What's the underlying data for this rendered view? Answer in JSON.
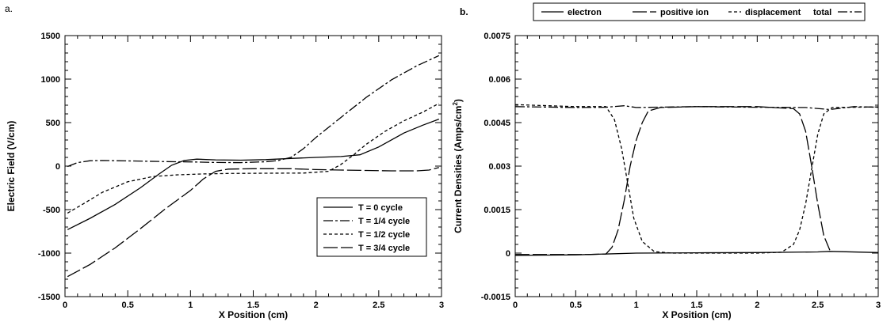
{
  "chart_data": [
    {
      "panel_label": "a.",
      "type": "line",
      "xlabel": "X Position (cm)",
      "ylabel": "Electric Field (V/cm)",
      "xlim": [
        0,
        3
      ],
      "ylim": [
        -1500,
        1500
      ],
      "xticks": [
        "0",
        "0.5",
        "1",
        "1.5",
        "2",
        "2.5",
        "3"
      ],
      "yticks": [
        "-1500",
        "-1000",
        "-500",
        "0",
        "500",
        "1000",
        "1500"
      ],
      "grid": false,
      "legend_position": "lower-right",
      "series": [
        {
          "name": "T = 0 cycle",
          "style": "solid",
          "points": [
            [
              0.02,
              -730
            ],
            [
              0.2,
              -600
            ],
            [
              0.4,
              -440
            ],
            [
              0.6,
              -250
            ],
            [
              0.75,
              -90
            ],
            [
              0.85,
              10
            ],
            [
              0.95,
              65
            ],
            [
              1.05,
              80
            ],
            [
              1.2,
              72
            ],
            [
              1.4,
              68
            ],
            [
              1.6,
              75
            ],
            [
              1.8,
              88
            ],
            [
              2.0,
              100
            ],
            [
              2.2,
              110
            ],
            [
              2.35,
              130
            ],
            [
              2.5,
              220
            ],
            [
              2.7,
              380
            ],
            [
              2.85,
              470
            ],
            [
              2.98,
              540
            ]
          ]
        },
        {
          "name": "T = 1/4 cycle",
          "style": "dash-dot",
          "points": [
            [
              0.02,
              -5
            ],
            [
              0.1,
              40
            ],
            [
              0.2,
              62
            ],
            [
              0.3,
              65
            ],
            [
              0.5,
              60
            ],
            [
              0.8,
              52
            ],
            [
              1.0,
              48
            ],
            [
              1.2,
              42
            ],
            [
              1.4,
              40
            ],
            [
              1.6,
              50
            ],
            [
              1.7,
              65
            ],
            [
              1.8,
              100
            ],
            [
              1.9,
              200
            ],
            [
              2.0,
              330
            ],
            [
              2.2,
              560
            ],
            [
              2.4,
              790
            ],
            [
              2.6,
              990
            ],
            [
              2.8,
              1150
            ],
            [
              2.98,
              1270
            ]
          ]
        },
        {
          "name": "T = 1/2 cycle",
          "style": "dotted",
          "points": [
            [
              0.02,
              -540
            ],
            [
              0.15,
              -430
            ],
            [
              0.3,
              -300
            ],
            [
              0.5,
              -180
            ],
            [
              0.7,
              -120
            ],
            [
              0.9,
              -100
            ],
            [
              1.1,
              -90
            ],
            [
              1.3,
              -85
            ],
            [
              1.6,
              -82
            ],
            [
              1.9,
              -80
            ],
            [
              2.1,
              -60
            ],
            [
              2.2,
              20
            ],
            [
              2.3,
              130
            ],
            [
              2.4,
              250
            ],
            [
              2.55,
              400
            ],
            [
              2.7,
              520
            ],
            [
              2.85,
              620
            ],
            [
              2.98,
              720
            ]
          ]
        },
        {
          "name": "T = 3/4 cycle",
          "style": "long-dash",
          "points": [
            [
              0.02,
              -1270
            ],
            [
              0.2,
              -1130
            ],
            [
              0.4,
              -940
            ],
            [
              0.6,
              -720
            ],
            [
              0.8,
              -490
            ],
            [
              1.0,
              -280
            ],
            [
              1.1,
              -150
            ],
            [
              1.2,
              -60
            ],
            [
              1.3,
              -35
            ],
            [
              1.5,
              -30
            ],
            [
              1.8,
              -30
            ],
            [
              2.0,
              -40
            ],
            [
              2.2,
              -45
            ],
            [
              2.4,
              -50
            ],
            [
              2.6,
              -55
            ],
            [
              2.8,
              -55
            ],
            [
              2.9,
              -45
            ],
            [
              2.98,
              -15
            ]
          ]
        }
      ]
    },
    {
      "panel_label": "b.",
      "type": "line",
      "xlabel": "X Position (cm)",
      "ylabel_main": "Current Densities (Amps/cm",
      "ylabel_sup": "2",
      "ylabel_end": ")",
      "xlim": [
        0,
        3
      ],
      "ylim": [
        -0.0015,
        0.0075
      ],
      "xticks": [
        "0",
        "0.5",
        "1",
        "1.5",
        "2",
        "2.5",
        "3"
      ],
      "yticks": [
        "-0.0015",
        "0",
        "0.0015",
        "0.003",
        "0.0045",
        "0.006",
        "0.0075"
      ],
      "grid": false,
      "legend_position": "top",
      "series": [
        {
          "name": "electron",
          "style": "solid",
          "points": [
            [
              0.0,
              -8e-05
            ],
            [
              0.5,
              -6e-05
            ],
            [
              1.0,
              0.0
            ],
            [
              1.5,
              1e-05
            ],
            [
              2.0,
              2e-05
            ],
            [
              2.5,
              4e-05
            ],
            [
              2.6,
              6e-05
            ],
            [
              3.0,
              2e-05
            ]
          ]
        },
        {
          "name": "positive ion",
          "style": "long-dash",
          "points": [
            [
              0.0,
              -5e-05
            ],
            [
              0.6,
              -5e-05
            ],
            [
              0.75,
              -3e-05
            ],
            [
              0.8,
              0.0002
            ],
            [
              0.85,
              0.0008
            ],
            [
              0.9,
              0.0018
            ],
            [
              0.95,
              0.003
            ],
            [
              1.0,
              0.0039
            ],
            [
              1.05,
              0.0045
            ],
            [
              1.1,
              0.0049
            ],
            [
              1.2,
              0.00502
            ],
            [
              1.5,
              0.00505
            ],
            [
              2.0,
              0.00505
            ],
            [
              2.3,
              0.00498
            ],
            [
              2.35,
              0.0048
            ],
            [
              2.4,
              0.0042
            ],
            [
              2.45,
              0.003
            ],
            [
              2.5,
              0.0017
            ],
            [
              2.55,
              0.0006
            ],
            [
              2.6,
              0.0001
            ]
          ]
        },
        {
          "name": "displacement",
          "style": "dotted",
          "points": [
            [
              0.0,
              0.00512
            ],
            [
              0.5,
              0.00505
            ],
            [
              0.75,
              0.00505
            ],
            [
              0.82,
              0.0046
            ],
            [
              0.88,
              0.0036
            ],
            [
              0.93,
              0.0024
            ],
            [
              0.98,
              0.0012
            ],
            [
              1.05,
              0.0004
            ],
            [
              1.15,
              5e-05
            ],
            [
              1.3,
              0.0
            ],
            [
              2.0,
              0.0
            ],
            [
              2.2,
              3e-05
            ],
            [
              2.3,
              0.0003
            ],
            [
              2.35,
              0.0008
            ],
            [
              2.4,
              0.0017
            ],
            [
              2.45,
              0.0029
            ],
            [
              2.5,
              0.0041
            ],
            [
              2.55,
              0.0048
            ],
            [
              2.62,
              0.00502
            ],
            [
              3.0,
              0.00504
            ]
          ]
        },
        {
          "name": "total",
          "style": "dash-dot",
          "points": [
            [
              0.0,
              0.00505
            ],
            [
              0.5,
              0.00502
            ],
            [
              0.75,
              0.00503
            ],
            [
              0.9,
              0.00508
            ],
            [
              1.0,
              0.00502
            ],
            [
              1.5,
              0.00505
            ],
            [
              2.0,
              0.00503
            ],
            [
              2.4,
              0.00502
            ],
            [
              2.6,
              0.00495
            ],
            [
              2.8,
              0.00505
            ],
            [
              3.0,
              0.00503
            ]
          ]
        }
      ]
    }
  ]
}
